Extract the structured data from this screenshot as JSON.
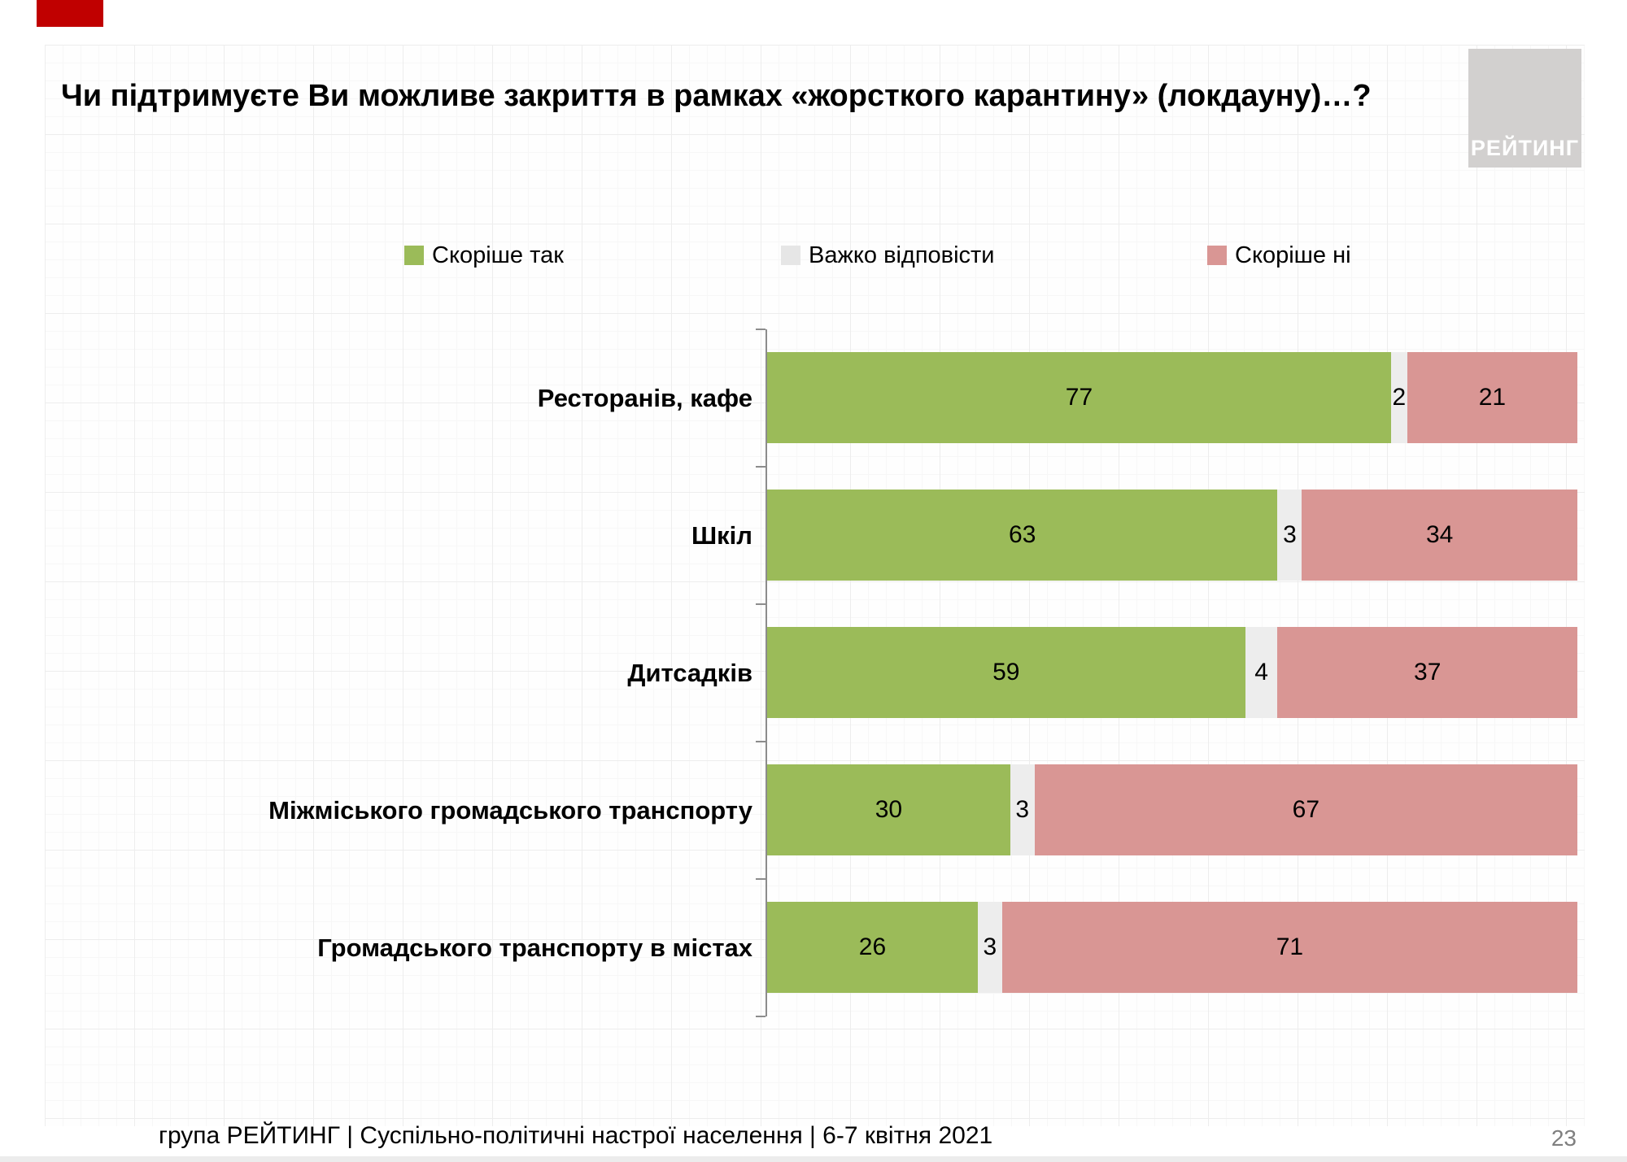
{
  "header": {
    "title": "Чи підтримуєте Ви можливе закриття в рамках «жорсткого карантину» (локдауну)…?"
  },
  "logo": {
    "text": "РЕЙТИНГ",
    "bg_color": "#d2d0cf",
    "text_color": "#ffffff"
  },
  "accent": {
    "red_tab_color": "#c00000"
  },
  "chart_data": {
    "type": "bar",
    "orientation": "horizontal-stacked",
    "xlim": [
      0,
      100
    ],
    "grid": false,
    "legend_position": "top",
    "categories": [
      "Ресторанів, кафе",
      "Шкіл",
      "Дитсадків",
      "Міжміського громадського транспорту",
      "Громадського транспорту в містах"
    ],
    "series": [
      {
        "name": "Скоріше так",
        "color": "#9bbb59",
        "values": [
          77,
          63,
          59,
          30,
          26
        ]
      },
      {
        "name": "Важко відповісти",
        "color": "#ededed",
        "legend_color": "#e6e6e6",
        "values": [
          2,
          3,
          4,
          3,
          3
        ]
      },
      {
        "name": "Скоріше ні",
        "color": "#d99694",
        "values": [
          21,
          34,
          37,
          67,
          71
        ]
      }
    ]
  },
  "footer": {
    "source_line": "група РЕЙТИНГ | Суспільно-політичні настрої населення | 6-7 квітня 2021",
    "page_number": "23"
  }
}
